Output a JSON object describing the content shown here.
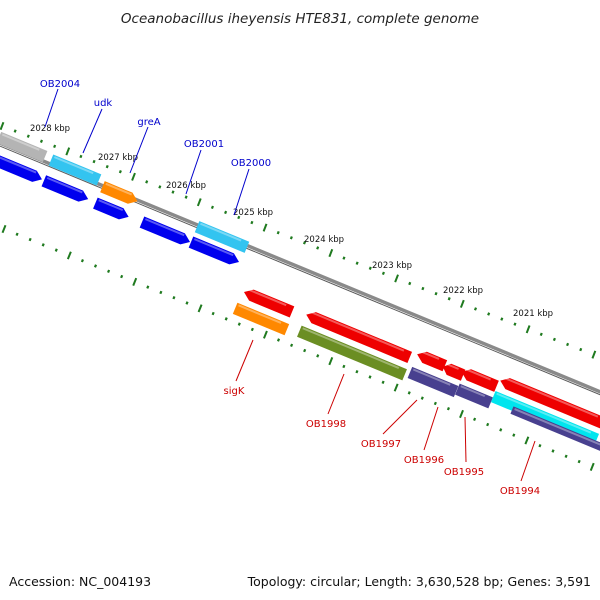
{
  "title": "Oceanobacillus iheyensis HTE831, complete genome",
  "footer": {
    "accession": "Accession: NC_004193",
    "topology": "Topology: circular; Length: 3,630,528 bp; Genes: 3,591"
  },
  "colors": {
    "backbone": "#8a8a8a",
    "tick": "#1f7a1f",
    "upper_label": "#0000cc",
    "lower_label": "#cc0000",
    "blue": "#0000ee",
    "light_blue": "#33c4f0",
    "orange": "#ff8800",
    "gray": "#b4b4b4",
    "red": "#ee0000",
    "olive": "#6b8e23",
    "slate": "#48408f",
    "cyan": "#00e5ee"
  },
  "kbp_labels": [
    "2028 kbp",
    "2027 kbp",
    "2026 kbp",
    "2025 kbp",
    "2024 kbp",
    "2023 kbp",
    "2022 kbp",
    "2021 kbp"
  ],
  "upper_genes": [
    "OB2004",
    "udk",
    "greA",
    "OB2001",
    "OB2000"
  ],
  "lower_genes": [
    "sigK",
    "OB1998",
    "OB1997",
    "OB1996",
    "OB1995",
    "OB1994"
  ]
}
